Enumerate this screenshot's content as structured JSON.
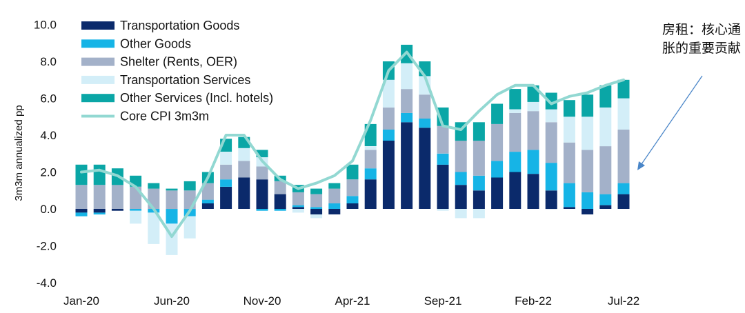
{
  "chart_data": {
    "type": "bar",
    "stacked": true,
    "ylabel": "3m3m annualized pp",
    "ylim": [
      -4.0,
      10.0
    ],
    "yticks": [
      "10.0",
      "8.0",
      "6.0",
      "4.0",
      "2.0",
      "0.0",
      "-2.0",
      "-4.0"
    ],
    "xticks": [
      "Jan-20",
      "Jun-20",
      "Nov-20",
      "Apr-21",
      "Sep-21",
      "Feb-22",
      "Jul-22"
    ],
    "x_tick_index": [
      0,
      5,
      10,
      15,
      20,
      25,
      30
    ],
    "grid": false,
    "legend_position": "top-left",
    "categories": [
      "Jan-20",
      "Feb-20",
      "Mar-20",
      "Apr-20",
      "May-20",
      "Jun-20",
      "Jul-20",
      "Aug-20",
      "Sep-20",
      "Oct-20",
      "Nov-20",
      "Dec-20",
      "Jan-21",
      "Feb-21",
      "Mar-21",
      "Apr-21",
      "May-21",
      "Jun-21",
      "Jul-21",
      "Aug-21",
      "Sep-21",
      "Oct-21",
      "Nov-21",
      "Dec-21",
      "Jan-22",
      "Feb-22",
      "Mar-22",
      "Apr-22",
      "May-22",
      "Jun-22",
      "Jul-22"
    ],
    "series": [
      {
        "name": "Transportation Goods",
        "color": "#0b2a6b",
        "values": [
          -0.2,
          -0.2,
          -0.1,
          0.0,
          0.0,
          0.0,
          0.0,
          0.3,
          1.2,
          1.7,
          1.6,
          0.8,
          0.1,
          -0.3,
          -0.3,
          0.3,
          1.6,
          3.7,
          4.7,
          4.4,
          2.4,
          1.3,
          1.0,
          1.7,
          2.0,
          1.9,
          1.0,
          0.1,
          -0.3,
          0.2,
          0.8
        ]
      },
      {
        "name": "Other Goods",
        "color": "#16b4e6",
        "values": [
          -0.2,
          -0.1,
          0.0,
          -0.1,
          -0.2,
          -0.8,
          -0.4,
          0.2,
          0.4,
          0.0,
          -0.1,
          -0.1,
          0.1,
          0.1,
          0.3,
          0.4,
          0.6,
          0.6,
          0.5,
          0.5,
          0.6,
          0.7,
          0.8,
          0.9,
          1.1,
          1.3,
          1.5,
          1.3,
          0.9,
          0.6,
          0.6
        ]
      },
      {
        "name": "Shelter (Rents, OER)",
        "color": "#a3b1c9",
        "values": [
          1.3,
          1.3,
          1.3,
          1.2,
          1.1,
          1.0,
          1.0,
          0.9,
          0.8,
          0.9,
          0.7,
          0.7,
          0.7,
          0.7,
          0.8,
          0.9,
          1.0,
          1.2,
          1.3,
          1.3,
          1.5,
          1.7,
          1.9,
          2.0,
          2.1,
          2.1,
          2.2,
          2.2,
          2.3,
          2.6,
          2.9
        ]
      },
      {
        "name": "Transportation Services",
        "color": "#d3eef8",
        "values": [
          0.0,
          0.0,
          0.0,
          -0.7,
          -1.7,
          -1.7,
          -1.2,
          0.0,
          0.7,
          0.7,
          0.5,
          0.0,
          -0.2,
          -0.2,
          0.0,
          0.0,
          0.2,
          1.5,
          1.4,
          1.0,
          -0.1,
          -0.5,
          -0.5,
          0.0,
          0.2,
          0.5,
          0.7,
          1.4,
          1.8,
          2.1,
          1.7
        ]
      },
      {
        "name": "Other Services (Incl. hotels)",
        "color": "#0aa6a6",
        "values": [
          1.1,
          1.1,
          0.9,
          0.6,
          0.3,
          0.1,
          0.5,
          0.6,
          0.7,
          0.6,
          0.4,
          0.3,
          0.4,
          0.3,
          0.3,
          0.8,
          1.2,
          1.0,
          1.0,
          0.8,
          1.0,
          1.0,
          1.0,
          1.1,
          1.1,
          0.9,
          0.9,
          0.9,
          1.2,
          1.2,
          1.0
        ]
      }
    ],
    "line": {
      "name": "Core CPI 3m3m",
      "color": "#92d8d2",
      "values": [
        2.0,
        2.1,
        1.8,
        1.2,
        0.0,
        -1.5,
        -0.1,
        1.7,
        4.0,
        4.0,
        2.6,
        1.6,
        1.1,
        1.4,
        1.8,
        2.6,
        4.8,
        7.5,
        8.5,
        7.2,
        4.5,
        4.3,
        5.3,
        6.2,
        6.7,
        6.7,
        5.7,
        6.1,
        6.3,
        6.7,
        7.0
      ]
    }
  },
  "annotation": {
    "text": "房租：核心通胀的重要贡献"
  }
}
